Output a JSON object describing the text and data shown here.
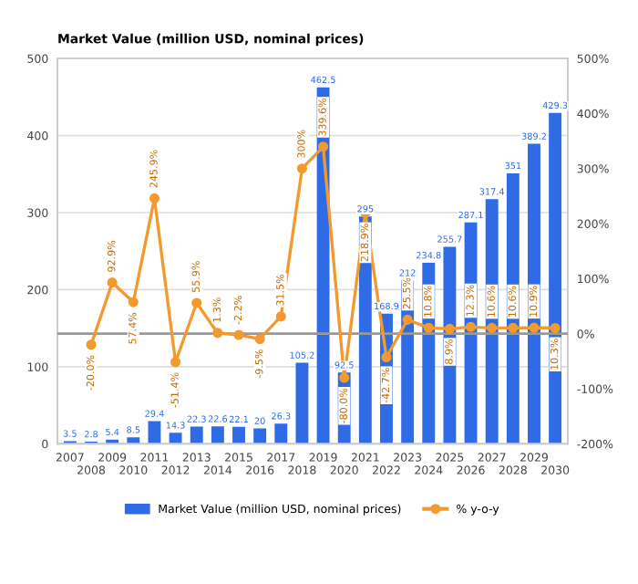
{
  "chart_data": {
    "type": "bar",
    "title": "Market Value (million USD, nominal prices)",
    "categories": [
      "2007",
      "2008",
      "2009",
      "2010",
      "2011",
      "2012",
      "2013",
      "2014",
      "2015",
      "2016",
      "2017",
      "2018",
      "2019",
      "2020",
      "2021",
      "2022",
      "2023",
      "2024",
      "2025",
      "2026",
      "2027",
      "2028",
      "2029",
      "2030"
    ],
    "series": [
      {
        "name": "Market Value (million USD, nominal prices)",
        "color": "#2f6be4",
        "values": [
          3.5,
          2.8,
          5.4,
          8.5,
          29.4,
          14.3,
          22.3,
          22.6,
          22.1,
          20,
          26.3,
          105.2,
          462.5,
          92.5,
          295,
          168.9,
          212,
          234.8,
          255.7,
          287.1,
          317.4,
          351,
          389.2,
          429.3
        ],
        "value_labels": [
          "3.5",
          "2.8",
          "5.4",
          "8.5",
          "29.4",
          "14.3",
          "22.3",
          "22.6",
          "22.1",
          "20",
          "26.3",
          "105.2",
          "462.5",
          "92.5",
          "295",
          "168.9",
          "212",
          "234.8",
          "255.7",
          "287.1",
          "317.4",
          "351",
          "389.2",
          "429.3"
        ]
      },
      {
        "name": "% y-o-y",
        "type": "line",
        "axis": "y2",
        "color": "#f39a2e",
        "marker": "circle",
        "values": [
          null,
          -20.0,
          92.9,
          57.4,
          245.9,
          -51.4,
          55.9,
          1.3,
          -2.2,
          -9.5,
          31.5,
          300,
          339.6,
          -80.0,
          218.9,
          -42.7,
          25.5,
          10.8,
          8.9,
          12.3,
          10.6,
          10.6,
          10.9,
          10.3
        ],
        "value_labels": [
          null,
          "-20.0%",
          "92.9%",
          "57.4%",
          "245.9%",
          "-51.4%",
          "55.9%",
          "1.3%",
          "-2.2%",
          "-9.5%",
          "31.5%",
          "300%",
          "339.6%",
          "-80.0%",
          "218.9%",
          "-42.7%",
          "25.5%",
          "10.8%",
          "8.9%",
          "12.3%",
          "10.6%",
          "10.6%",
          "10.9%",
          "10.3%"
        ]
      }
    ],
    "ylim": [
      0,
      500
    ],
    "yticks": [
      0,
      100,
      200,
      300,
      400,
      500
    ],
    "y2lim": [
      -200,
      500
    ],
    "y2ticks": [
      {
        "value": -200,
        "label": "-200%"
      },
      {
        "value": -100,
        "label": "-100%"
      },
      {
        "value": 0,
        "label": "0%"
      },
      {
        "value": 100,
        "label": "100%"
      },
      {
        "value": 200,
        "label": "200%"
      },
      {
        "value": 300,
        "label": "300%"
      },
      {
        "value": 400,
        "label": "400%"
      },
      {
        "value": 500,
        "label": "500%"
      }
    ],
    "ref_lines": [
      {
        "axis": "y2",
        "value": 0,
        "color": "#999999"
      }
    ],
    "grid": "y",
    "legend": "bottom"
  }
}
